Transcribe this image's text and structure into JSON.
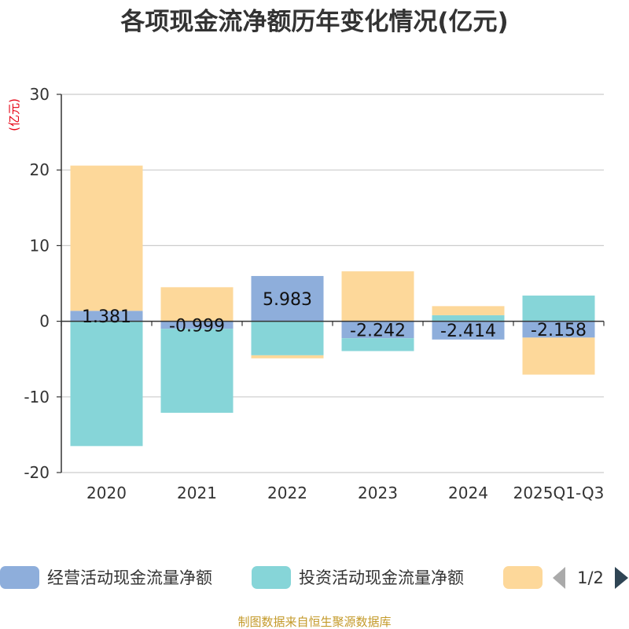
{
  "chart_data": {
    "type": "bar",
    "stacked": true,
    "title": "各项现金流净额历年变化情况(亿元)",
    "ylabel": "(亿元)",
    "ylim": [
      -20,
      30
    ],
    "yticks": [
      30,
      20,
      10,
      0,
      -10,
      -20
    ],
    "categories": [
      "2020",
      "2021",
      "2022",
      "2023",
      "2024",
      "2025Q1-Q3"
    ],
    "series": [
      {
        "name": "经营活动现金流量净额",
        "color": "#8eaedb",
        "values": [
          1.381,
          -0.999,
          5.983,
          -2.242,
          -2.414,
          -2.158
        ],
        "show_labels": true
      },
      {
        "name": "投资活动现金流量净额",
        "color": "#86d5d8",
        "values": [
          -16.5,
          -11.1,
          -4.5,
          -1.7,
          0.8,
          3.4
        ],
        "show_labels": false
      },
      {
        "name": "",
        "color": "#fdd89a",
        "values": [
          19.2,
          4.5,
          -0.4,
          6.6,
          1.2,
          -4.9
        ],
        "show_labels": false
      }
    ],
    "legend": {
      "position": "bottom",
      "page": "1/2"
    },
    "source": "制图数据来自恒生聚源数据库"
  }
}
